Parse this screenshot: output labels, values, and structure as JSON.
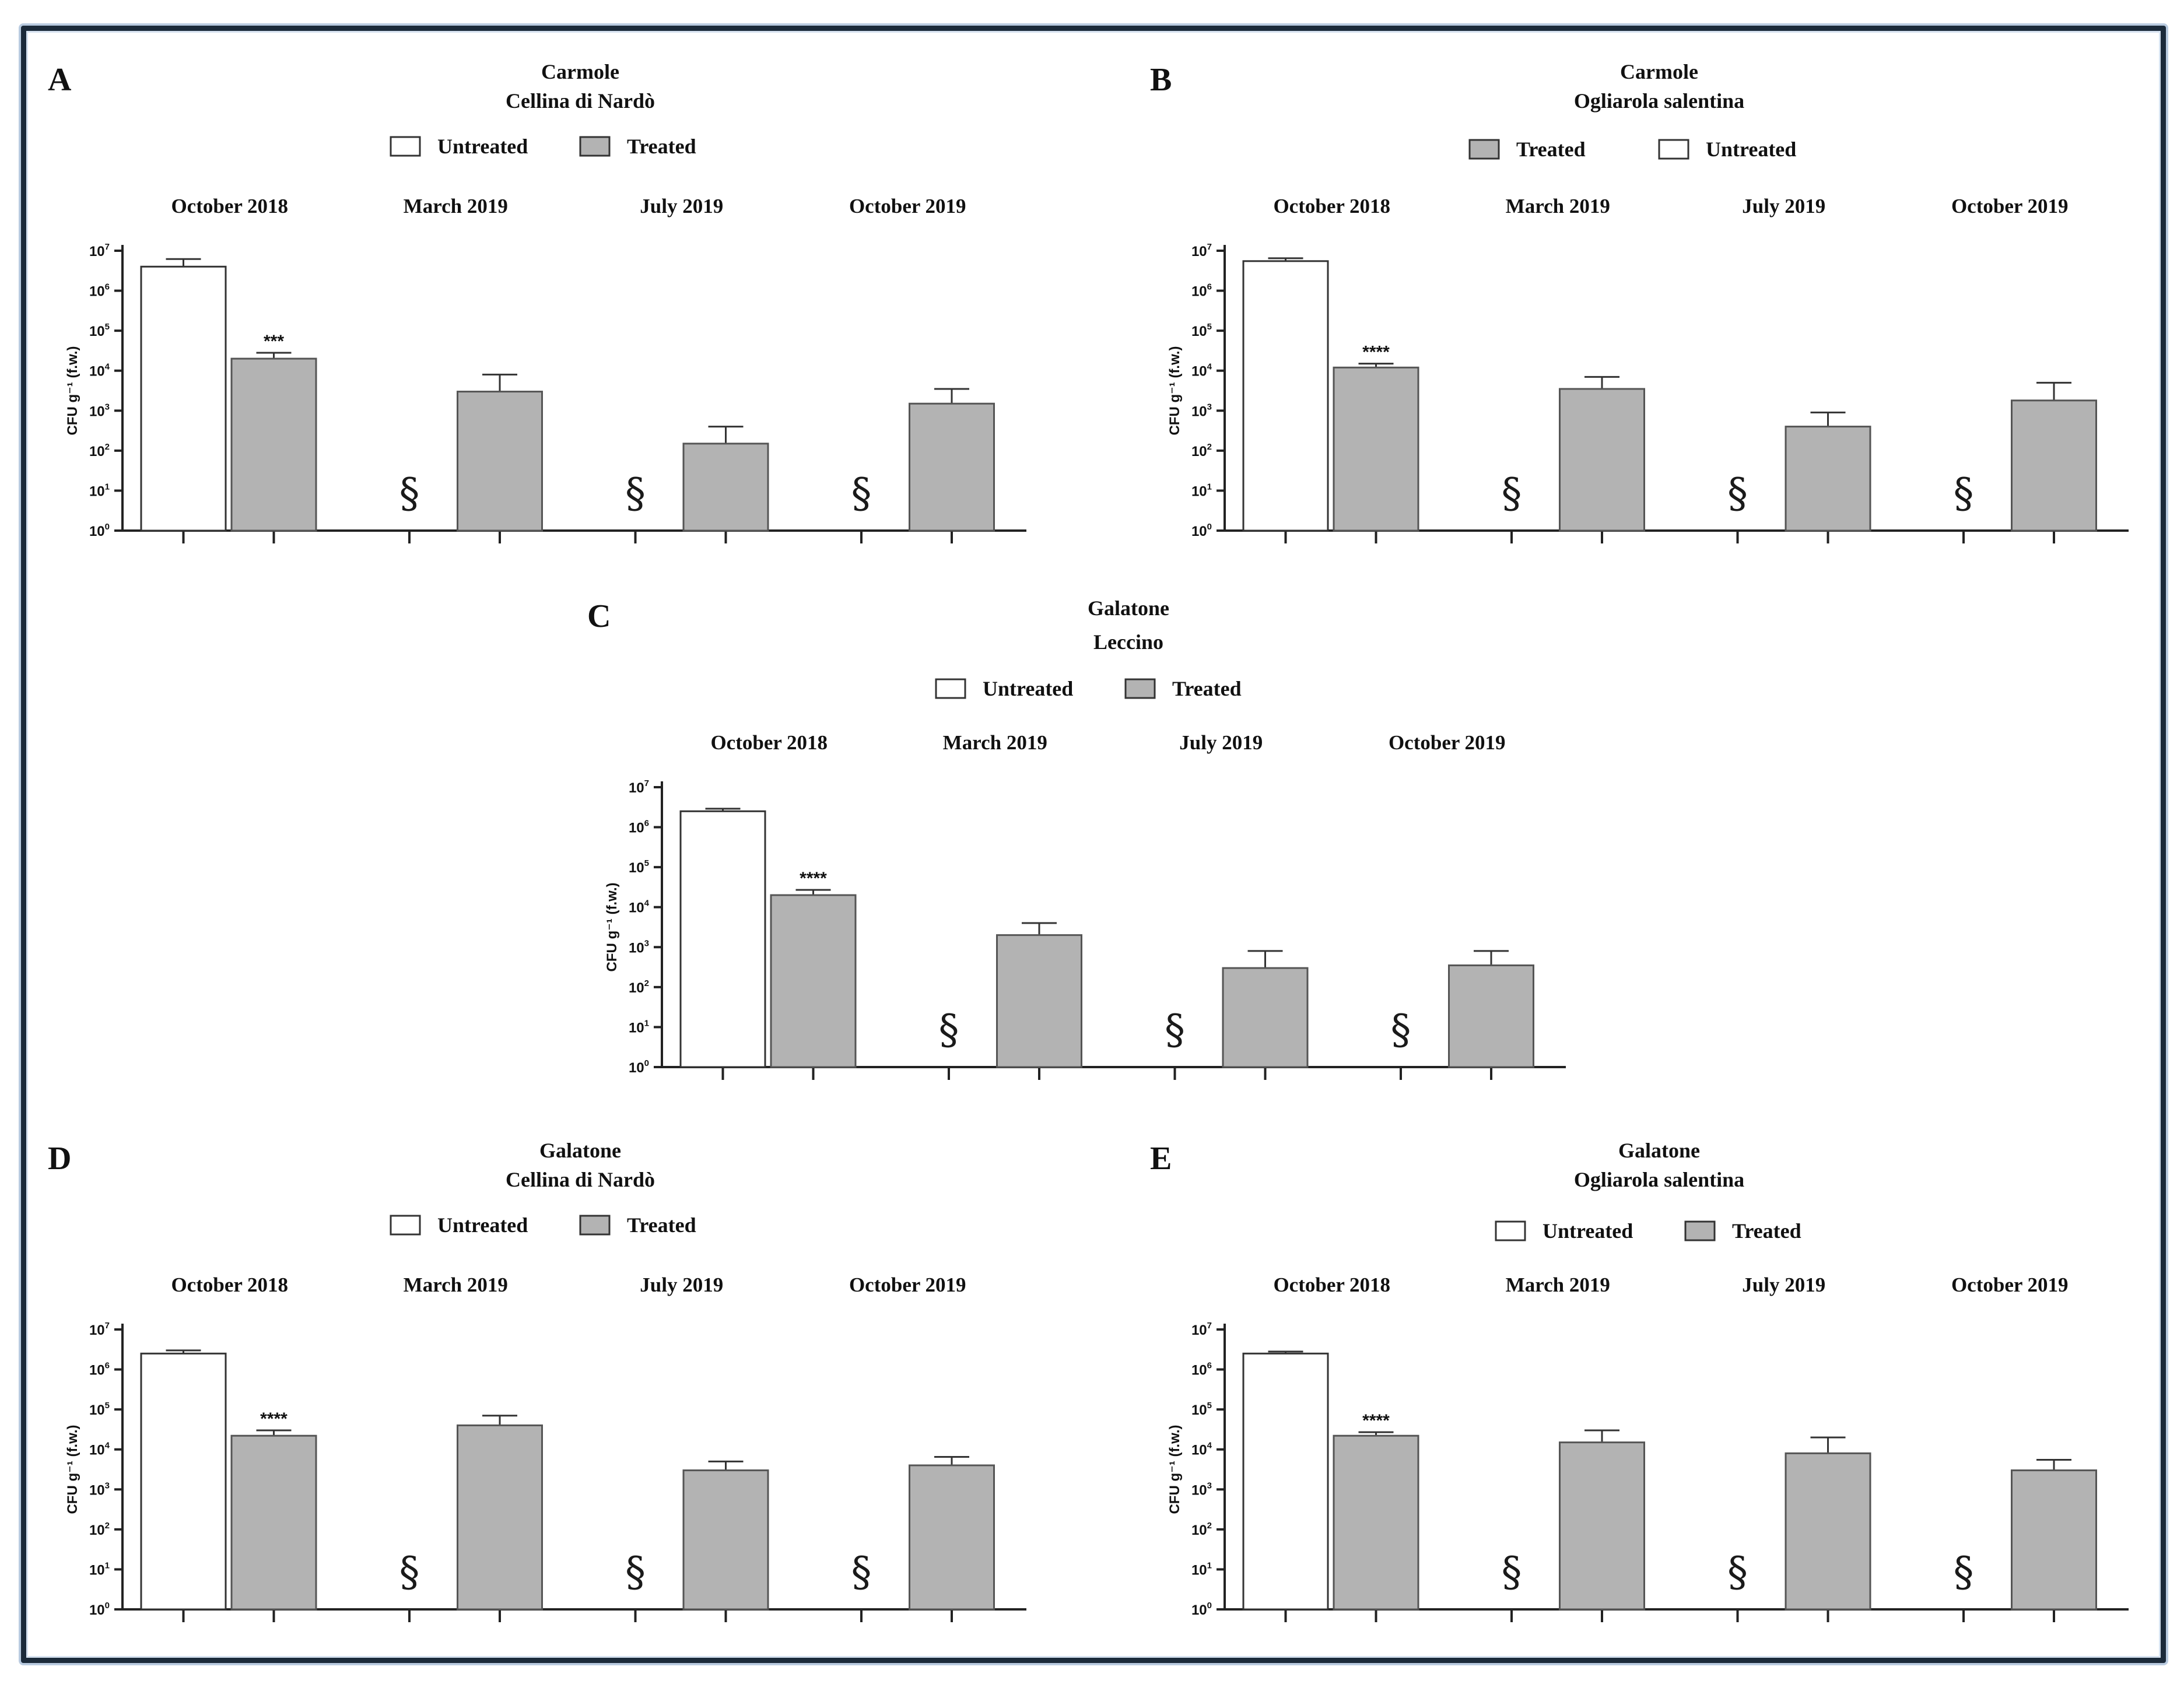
{
  "colors": {
    "frame": "#1b2a3a",
    "untreated_fill": "#ffffff",
    "treated_fill": "#b3b3b3",
    "axis": "#222222"
  },
  "y_axis_label": "CFU g⁻¹ (f.w.)",
  "panels": {
    "A": {
      "letter": "A",
      "title_line1": "Carmole",
      "title_line2": "Cellina di Nardò",
      "legend": [
        {
          "name": "Untreated",
          "fill": "#ffffff"
        },
        {
          "name": "Treated",
          "fill": "#b3b3b3"
        }
      ]
    },
    "B": {
      "letter": "B",
      "title_line1": "Carmole",
      "title_line2": "Ogliarola salentina",
      "legend": [
        {
          "name": "Treated",
          "fill": "#b3b3b3"
        },
        {
          "name": "Untreated",
          "fill": "#ffffff"
        }
      ]
    },
    "C": {
      "letter": "C",
      "title_line1": "Galatone",
      "title_line2": "Leccino",
      "legend": [
        {
          "name": "Untreated",
          "fill": "#ffffff"
        },
        {
          "name": "Treated",
          "fill": "#b3b3b3"
        }
      ]
    },
    "D": {
      "letter": "D",
      "title_line1": "Galatone",
      "title_line2": "Cellina di Nardò",
      "legend": [
        {
          "name": "Untreated",
          "fill": "#ffffff"
        },
        {
          "name": "Treated",
          "fill": "#b3b3b3"
        }
      ]
    },
    "E": {
      "letter": "E",
      "title_line1": "Galatone",
      "title_line2": "Ogliarola salentina",
      "legend": [
        {
          "name": "Untreated",
          "fill": "#ffffff"
        },
        {
          "name": "Treated",
          "fill": "#b3b3b3"
        }
      ]
    }
  },
  "chart_data": [
    {
      "panel": "A",
      "type": "bar",
      "scale": "log10",
      "title": "Carmole Cellina di Nardò",
      "ylabel": "CFU g⁻¹ (f.w.)",
      "categories": [
        "October 2018",
        "March 2019",
        "July 2019",
        "October 2019"
      ],
      "ylim_exp": [
        0,
        7
      ],
      "y_ticks": [
        "10",
        "10",
        "10",
        "10",
        "10",
        "10",
        "10",
        "10"
      ],
      "y_tick_exps": [
        "0",
        "1",
        "2",
        "3",
        "4",
        "5",
        "6",
        "7"
      ],
      "series": [
        {
          "name": "Untreated",
          "values": [
            4000000,
            null,
            null,
            null
          ],
          "error_upper": [
            6200000,
            null,
            null,
            null
          ],
          "below_detection": [
            false,
            true,
            true,
            true
          ]
        },
        {
          "name": "Treated",
          "values": [
            20000,
            3000,
            150,
            1500
          ],
          "error_upper": [
            28000,
            8000,
            400,
            3500
          ]
        }
      ],
      "significance": [
        {
          "category": "October 2018",
          "label": "***"
        }
      ],
      "below_detection_mark": "§"
    },
    {
      "panel": "B",
      "type": "bar",
      "scale": "log10",
      "title": "Carmole Ogliarola salentina",
      "ylabel": "CFU g⁻¹ (f.w.)",
      "categories": [
        "October 2018",
        "March 2019",
        "July 2019",
        "October 2019"
      ],
      "ylim_exp": [
        0,
        7
      ],
      "y_ticks": [
        "10",
        "10",
        "10",
        "10",
        "10",
        "10",
        "10",
        "10"
      ],
      "y_tick_exps": [
        "0",
        "1",
        "2",
        "3",
        "4",
        "5",
        "6",
        "7"
      ],
      "series": [
        {
          "name": "Untreated",
          "values": [
            5500000,
            null,
            null,
            null
          ],
          "error_upper": [
            6500000,
            null,
            null,
            null
          ],
          "below_detection": [
            false,
            true,
            true,
            true
          ]
        },
        {
          "name": "Treated",
          "values": [
            12000,
            3500,
            400,
            1800
          ],
          "error_upper": [
            15000,
            7000,
            900,
            5000
          ]
        }
      ],
      "significance": [
        {
          "category": "October 2018",
          "label": "****"
        }
      ],
      "below_detection_mark": "§"
    },
    {
      "panel": "C",
      "type": "bar",
      "scale": "log10",
      "title": "Galatone Leccino",
      "ylabel": "CFU g⁻¹ (f.w.)",
      "categories": [
        "October 2018",
        "March 2019",
        "July 2019",
        "October 2019"
      ],
      "ylim_exp": [
        0,
        7
      ],
      "y_ticks": [
        "10",
        "10",
        "10",
        "10",
        "10",
        "10",
        "10",
        "10"
      ],
      "y_tick_exps": [
        "0",
        "1",
        "2",
        "3",
        "4",
        "5",
        "6",
        "7"
      ],
      "series": [
        {
          "name": "Untreated",
          "values": [
            2500000,
            null,
            null,
            null
          ],
          "error_upper": [
            2900000,
            null,
            null,
            null
          ],
          "below_detection": [
            false,
            true,
            true,
            true
          ]
        },
        {
          "name": "Treated",
          "values": [
            20000,
            2000,
            300,
            350
          ],
          "error_upper": [
            27000,
            4000,
            800,
            800
          ]
        }
      ],
      "significance": [
        {
          "category": "October 2018",
          "label": "****"
        }
      ],
      "below_detection_mark": "§"
    },
    {
      "panel": "D",
      "type": "bar",
      "scale": "log10",
      "title": "Galatone Cellina di Nardò",
      "ylabel": "CFU g⁻¹ (f.w.)",
      "categories": [
        "October 2018",
        "March 2019",
        "July 2019",
        "October 2019"
      ],
      "ylim_exp": [
        0,
        7
      ],
      "y_ticks": [
        "10",
        "10",
        "10",
        "10",
        "10",
        "10",
        "10",
        "10"
      ],
      "y_tick_exps": [
        "0",
        "1",
        "2",
        "3",
        "4",
        "5",
        "6",
        "7"
      ],
      "series": [
        {
          "name": "Untreated",
          "values": [
            2500000,
            null,
            null,
            null
          ],
          "error_upper": [
            3000000,
            null,
            null,
            null
          ],
          "below_detection": [
            false,
            true,
            true,
            true
          ]
        },
        {
          "name": "Treated",
          "values": [
            22000,
            40000,
            3000,
            4000
          ],
          "error_upper": [
            30000,
            70000,
            5000,
            6500
          ]
        }
      ],
      "significance": [
        {
          "category": "October 2018",
          "label": "****"
        }
      ],
      "below_detection_mark": "§"
    },
    {
      "panel": "E",
      "type": "bar",
      "scale": "log10",
      "title": "Galatone Ogliarola salentina",
      "ylabel": "CFU g⁻¹ (f.w.)",
      "categories": [
        "October 2018",
        "March 2019",
        "July 2019",
        "October 2019"
      ],
      "ylim_exp": [
        0,
        7
      ],
      "y_ticks": [
        "10",
        "10",
        "10",
        "10",
        "10",
        "10",
        "10",
        "10"
      ],
      "y_tick_exps": [
        "0",
        "1",
        "2",
        "3",
        "4",
        "5",
        "6",
        "7"
      ],
      "series": [
        {
          "name": "Untreated",
          "values": [
            2500000,
            null,
            null,
            null
          ],
          "error_upper": [
            2800000,
            null,
            null,
            null
          ],
          "below_detection": [
            false,
            true,
            true,
            true
          ]
        },
        {
          "name": "Treated",
          "values": [
            22000,
            15000,
            8000,
            3000
          ],
          "error_upper": [
            27000,
            30000,
            20000,
            5500
          ]
        }
      ],
      "significance": [
        {
          "category": "October 2018",
          "label": "****"
        }
      ],
      "below_detection_mark": "§"
    }
  ]
}
